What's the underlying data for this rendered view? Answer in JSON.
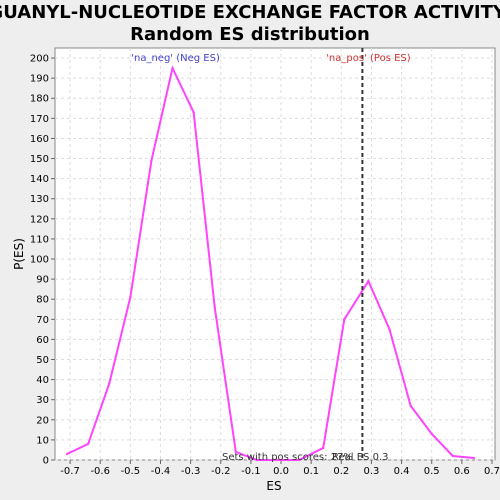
{
  "chart_data": {
    "type": "line",
    "title": "GUANYL-NUCLEOTIDE EXCHANGE FACTOR ACTIVITY:",
    "subtitle": "Random ES distribution",
    "xlabel": "ES",
    "ylabel": "P(ES)",
    "xlim": [
      -0.75,
      0.71
    ],
    "ylim": [
      0,
      205
    ],
    "x_ticks": [
      -0.7,
      -0.6,
      -0.5,
      -0.4,
      -0.3,
      -0.2,
      -0.1,
      0.0,
      0.1,
      0.2,
      0.3,
      0.4,
      0.5,
      0.6,
      0.7
    ],
    "x_tick_labels": [
      "-0.7",
      "-0.6",
      "-0.5",
      "-0.4",
      "-0.3",
      "-0.2",
      "-0.1",
      "0.0",
      "0.1",
      "0.2",
      "0.3",
      "0.4",
      "0.5",
      "0.6",
      "0.7"
    ],
    "y_ticks": [
      0,
      10,
      20,
      30,
      40,
      50,
      60,
      70,
      80,
      90,
      100,
      110,
      120,
      130,
      140,
      150,
      160,
      170,
      180,
      190,
      200
    ],
    "grid": true,
    "series": [
      {
        "color": "#ff44ff",
        "x": [
          -0.71,
          -0.64,
          -0.57,
          -0.5,
          -0.43,
          -0.36,
          -0.29,
          -0.22,
          -0.15,
          -0.08,
          -0.01,
          0.06,
          0.14,
          0.21,
          0.29,
          0.36,
          0.43,
          0.5,
          0.57,
          0.64
        ],
        "y": [
          3,
          8,
          38,
          81,
          149,
          195,
          173,
          76,
          4,
          0,
          0,
          0,
          6,
          70,
          89,
          65,
          27,
          13,
          2,
          1
        ]
      }
    ],
    "vline": {
      "x": 0.27,
      "color": "#333333",
      "style": "dashed"
    },
    "annotations": [
      {
        "text": "'na_neg' (Neg ES)",
        "x": -0.35,
        "color": "#4444cc"
      },
      {
        "text": "'na_pos' (Pos ES)",
        "x": 0.29,
        "color": "#cc3333"
      }
    ],
    "footer": {
      "pos_scores": "Sets with pos scores: 27%",
      "real_es": "Real ES 0.3"
    }
  }
}
